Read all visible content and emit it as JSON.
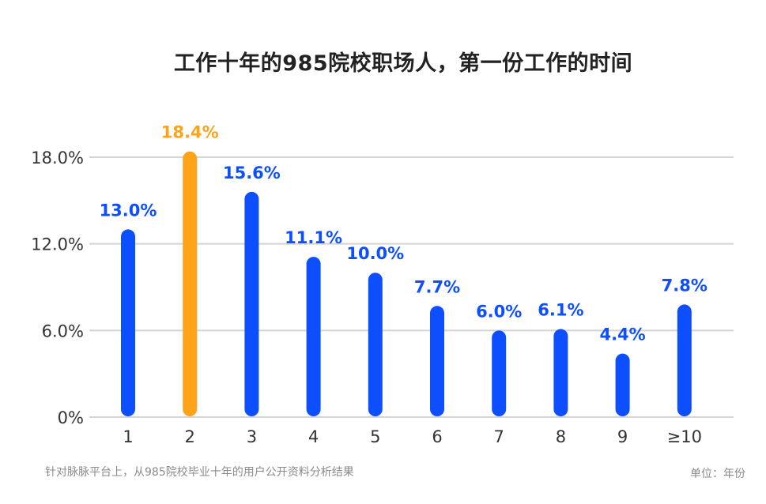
{
  "chart_data": {
    "type": "bar",
    "title": "工作十年的985院校职场人，第一份工作的时间",
    "categories": [
      "1",
      "2",
      "3",
      "4",
      "5",
      "6",
      "7",
      "8",
      "9",
      "≥10"
    ],
    "values": [
      13.0,
      18.4,
      15.6,
      11.1,
      10.0,
      7.7,
      6.0,
      6.1,
      4.4,
      7.8
    ],
    "value_labels": [
      "13.0%",
      "18.4%",
      "15.6%",
      "11.1%",
      "10.0%",
      "7.7%",
      "6.0%",
      "6.1%",
      "4.4%",
      "7.8%"
    ],
    "highlight_index": 1,
    "yticks": [
      0,
      6,
      12,
      18
    ],
    "ytick_labels": [
      "0%",
      "6.0%",
      "12.0%",
      "18.0%"
    ],
    "ylim": [
      0,
      18
    ],
    "grid": true,
    "colors": {
      "bar": "#0d4fff",
      "highlight": "#ffa31a",
      "grid": "#d4d4d4",
      "tick_text": "#333333"
    }
  },
  "footnote": "针对脉脉平台上，从985院校毕业十年的用户公开资料分析结果",
  "unit": "单位：年份"
}
